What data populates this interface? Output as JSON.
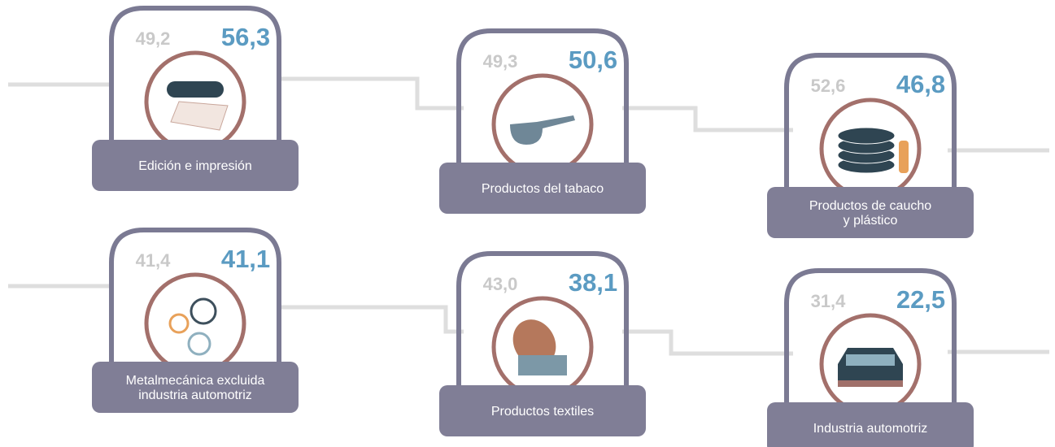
{
  "cards": [
    {
      "label": [
        "Edición e impresión"
      ],
      "previous": "49,2",
      "current": "56,3"
    },
    {
      "label": [
        "Productos del tabaco"
      ],
      "previous": "49,3",
      "current": "50,6"
    },
    {
      "label": [
        "Productos de caucho",
        "y plástico"
      ],
      "previous": "52,6",
      "current": "46,8"
    },
    {
      "label": [
        "Metalmecánica excluida",
        "industria automotriz"
      ],
      "previous": "41,4",
      "current": "41,1"
    },
    {
      "label": [
        "Productos textiles"
      ],
      "previous": "43,0",
      "current": "38,1"
    },
    {
      "label": [
        "Industria automotriz"
      ],
      "previous": "31,4",
      "current": "22,5"
    }
  ]
}
